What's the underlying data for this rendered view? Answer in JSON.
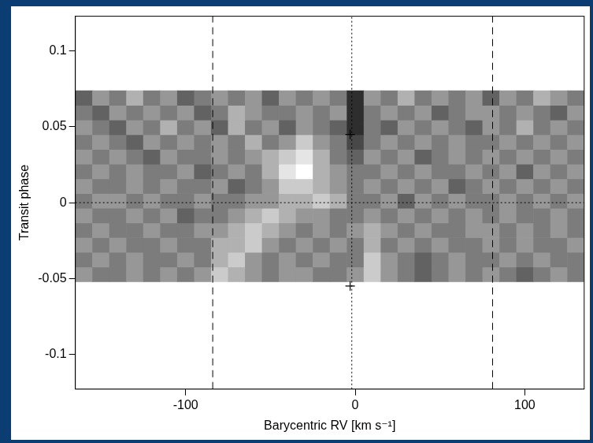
{
  "chart_data": {
    "type": "heatmap",
    "x_label": "Barycentric RV [km s⁻¹]",
    "y_label": "Transit phase",
    "xlim": [
      -165,
      135
    ],
    "ylim": [
      -0.123,
      0.123
    ],
    "xticks": [
      -100,
      0,
      100
    ],
    "yticks": [
      -0.1,
      -0.05,
      0,
      0.05,
      0.1
    ],
    "grid": false,
    "x": [
      -160,
      -150,
      -140,
      -130,
      -120,
      -110,
      -100,
      -90,
      -80,
      -70,
      -60,
      -50,
      -40,
      -30,
      -20,
      -10,
      0,
      10,
      20,
      30,
      40,
      50,
      60,
      70,
      80,
      90,
      100,
      110,
      120,
      130
    ],
    "y": [
      -0.0472,
      -0.0375,
      -0.0278,
      -0.0181,
      -0.0084,
      0.0013,
      0.011,
      0.0207,
      0.0304,
      0.0401,
      0.0498,
      0.0595,
      0.0692
    ],
    "color_range": [
      0,
      9
    ],
    "cells": [
      [
        5,
        4,
        4,
        5,
        4,
        5,
        4,
        5,
        7,
        6,
        5,
        4,
        5,
        5,
        4,
        4,
        5,
        7,
        5,
        4,
        3,
        4,
        5,
        4,
        5,
        4,
        3,
        4,
        5,
        4
      ],
      [
        4,
        5,
        4,
        5,
        4,
        4,
        5,
        4,
        6,
        7,
        5,
        4,
        5,
        4,
        5,
        4,
        4,
        7,
        5,
        4,
        3,
        4,
        5,
        4,
        4,
        5,
        4,
        5,
        4,
        4
      ],
      [
        5,
        4,
        5,
        4,
        4,
        5,
        4,
        4,
        6,
        6,
        7,
        5,
        4,
        5,
        4,
        5,
        4,
        6,
        4,
        5,
        4,
        5,
        4,
        4,
        5,
        4,
        5,
        4,
        4,
        5
      ],
      [
        4,
        5,
        4,
        4,
        5,
        4,
        4,
        5,
        5,
        6,
        7,
        6,
        5,
        4,
        5,
        4,
        5,
        6,
        5,
        4,
        5,
        4,
        4,
        5,
        5,
        4,
        5,
        4,
        5,
        4
      ],
      [
        5,
        4,
        4,
        5,
        4,
        5,
        3,
        4,
        4,
        5,
        6,
        7,
        6,
        5,
        5,
        4,
        4,
        5,
        4,
        5,
        4,
        5,
        4,
        5,
        4,
        5,
        4,
        4,
        5,
        4
      ],
      [
        4,
        5,
        5,
        4,
        5,
        4,
        4,
        5,
        4,
        4,
        5,
        5,
        6,
        6,
        7,
        6,
        4,
        4,
        5,
        3,
        5,
        4,
        5,
        4,
        4,
        5,
        4,
        5,
        4,
        5
      ],
      [
        5,
        4,
        4,
        5,
        4,
        5,
        4,
        4,
        5,
        3,
        4,
        5,
        7,
        7,
        6,
        5,
        4,
        5,
        4,
        5,
        4,
        5,
        3,
        4,
        5,
        4,
        5,
        4,
        5,
        4
      ],
      [
        4,
        5,
        4,
        5,
        4,
        4,
        5,
        3,
        4,
        5,
        4,
        6,
        8,
        9,
        6,
        5,
        4,
        4,
        5,
        4,
        5,
        4,
        4,
        5,
        4,
        5,
        3,
        5,
        4,
        5
      ],
      [
        5,
        4,
        5,
        4,
        3,
        5,
        4,
        4,
        5,
        4,
        5,
        6,
        7,
        8,
        6,
        4,
        3,
        5,
        4,
        5,
        3,
        4,
        5,
        4,
        5,
        4,
        5,
        4,
        5,
        4
      ],
      [
        4,
        5,
        4,
        3,
        5,
        4,
        5,
        4,
        5,
        4,
        6,
        4,
        5,
        7,
        5,
        4,
        2,
        4,
        5,
        4,
        5,
        4,
        5,
        4,
        4,
        5,
        4,
        5,
        4,
        5
      ],
      [
        5,
        4,
        3,
        5,
        4,
        6,
        4,
        5,
        3,
        6,
        4,
        5,
        3,
        5,
        4,
        3,
        1,
        4,
        3,
        5,
        4,
        5,
        4,
        3,
        5,
        4,
        6,
        4,
        5,
        4
      ],
      [
        4,
        3,
        5,
        4,
        5,
        4,
        5,
        3,
        4,
        6,
        5,
        4,
        4,
        5,
        4,
        5,
        1,
        4,
        5,
        4,
        5,
        3,
        4,
        5,
        5,
        4,
        5,
        4,
        3,
        5
      ],
      [
        3,
        5,
        4,
        6,
        4,
        5,
        3,
        4,
        5,
        4,
        5,
        3,
        5,
        4,
        5,
        4,
        1,
        5,
        4,
        6,
        4,
        5,
        4,
        5,
        3,
        5,
        4,
        6,
        5,
        4
      ]
    ],
    "vlines": [
      {
        "x": -84,
        "line_style": "dashed"
      },
      {
        "x": 81,
        "line_style": "dashed"
      },
      {
        "x": -2,
        "line_style": "dotted"
      }
    ],
    "hlines": [
      {
        "y": 0,
        "line_style": "dotted"
      }
    ],
    "points": [
      {
        "x": -3,
        "y": 0.045,
        "marker": "cross"
      },
      {
        "x": -3,
        "y": -0.055,
        "marker": "cross"
      }
    ]
  }
}
